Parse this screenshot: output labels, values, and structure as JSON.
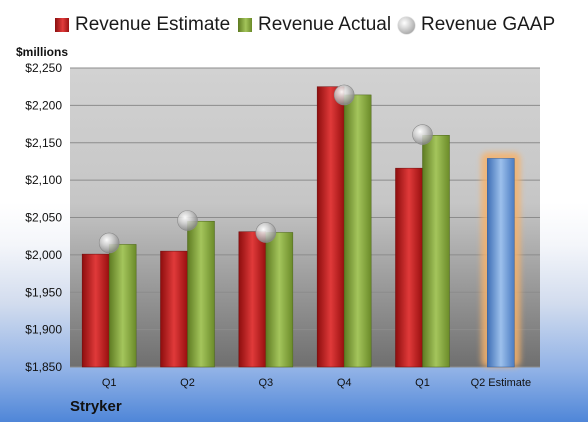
{
  "chart_data": {
    "type": "bar",
    "categories": [
      "Q1",
      "Q2",
      "Q3",
      "Q4",
      "Q1",
      "Q2 Estimate"
    ],
    "series": [
      {
        "name": "Revenue Estimate",
        "kind": "bar",
        "color": "#cc2222",
        "values": [
          2001,
          2005,
          2031,
          2225,
          2116,
          2129
        ]
      },
      {
        "name": "Revenue Actual",
        "kind": "bar",
        "color": "#8fb14a",
        "values": [
          2014,
          2045,
          2030,
          2214,
          2160,
          null
        ]
      },
      {
        "name": "Revenue GAAP",
        "kind": "marker",
        "color": "#a6a6a6",
        "values": [
          2016,
          2046,
          2030,
          2214,
          2161,
          null
        ]
      }
    ],
    "highlight": {
      "category": "Q2 Estimate",
      "bar_color": "#7aa6dc",
      "glow_color": "#f7b26b"
    },
    "ylabel": "$millions",
    "ylim": [
      1850,
      2250
    ],
    "yticks": [
      1850,
      1900,
      1950,
      2000,
      2050,
      2100,
      2150,
      2200,
      2250
    ],
    "ytick_labels": [
      "$1,850",
      "$1,900",
      "$1,950",
      "$2,000",
      "$2,050",
      "$2,100",
      "$2,150",
      "$2,200",
      "$2,250"
    ],
    "grid": true,
    "legend": "top"
  },
  "legend": {
    "estimate": "Revenue Estimate",
    "actual": "Revenue Actual",
    "gaap": "Revenue GAAP"
  },
  "company": "Stryker"
}
